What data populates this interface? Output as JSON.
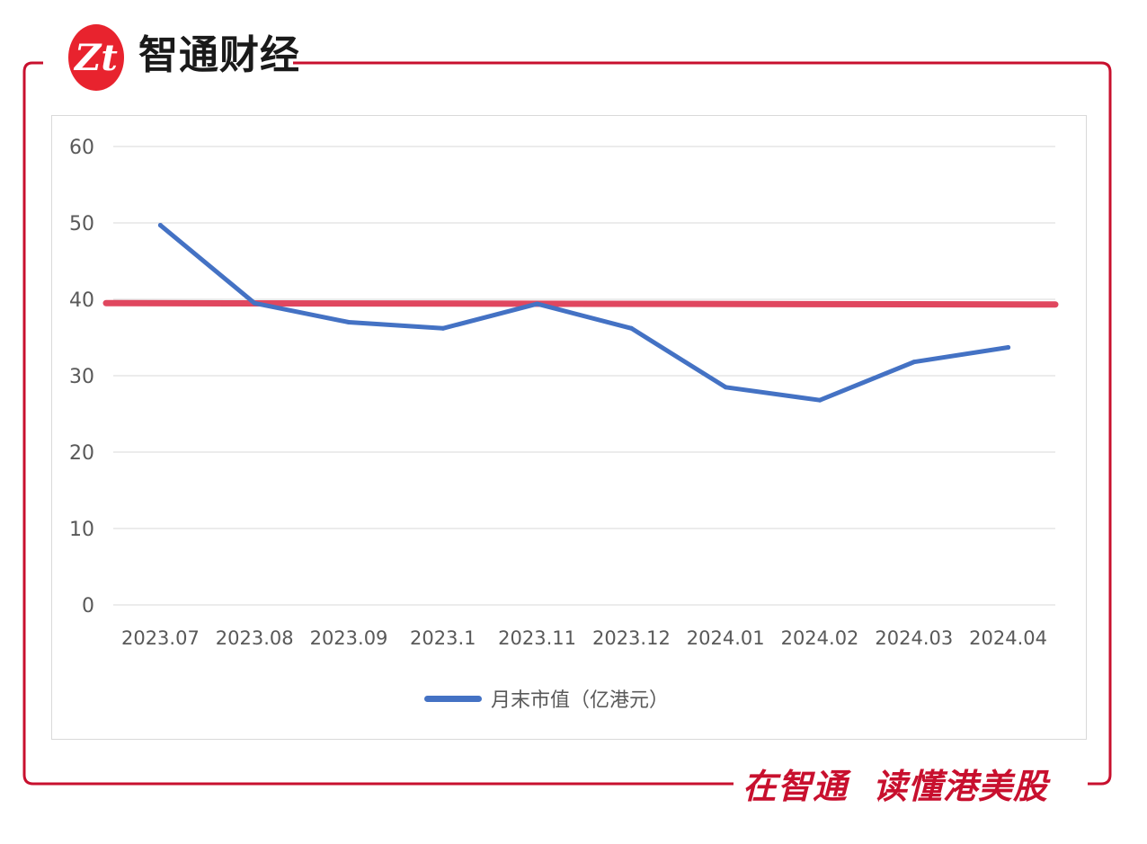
{
  "brand": {
    "logo_label": "Zt",
    "name": "智通财经"
  },
  "footer": {
    "slogan_part1": "在智通",
    "slogan_part2": "读懂港美股"
  },
  "colors": {
    "frame": "#c8102e",
    "series_line": "#4472c4",
    "reference_line": "#e0475f",
    "grid": "#d9d9d9",
    "tick_text": "#595959"
  },
  "chart_data": {
    "type": "line",
    "categories": [
      "2023.07",
      "2023.08",
      "2023.09",
      "2023.1",
      "2023.11",
      "2023.12",
      "2024.01",
      "2024.02",
      "2024.03",
      "2024.04"
    ],
    "series": [
      {
        "name": "月末市值（亿港元）",
        "values": [
          49.7,
          39.5,
          37.0,
          36.2,
          39.4,
          36.2,
          28.5,
          26.8,
          31.8,
          33.7
        ]
      }
    ],
    "reference_line": {
      "value": 39.5
    },
    "yticks": [
      "0",
      "10",
      "20",
      "30",
      "40",
      "50",
      "60"
    ],
    "ylim": [
      0,
      60
    ],
    "grid": true,
    "legend": "bottom"
  }
}
